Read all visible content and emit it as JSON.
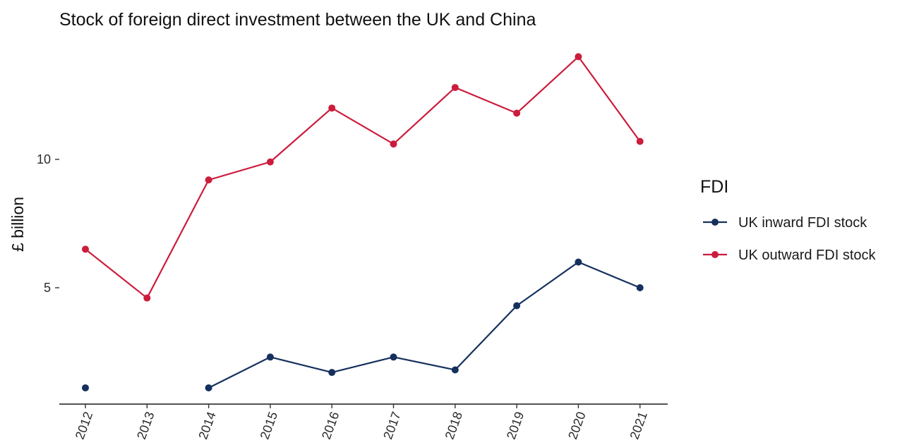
{
  "chart_data": {
    "type": "line",
    "title": "Stock of foreign direct investment between the UK and China",
    "xlabel": "",
    "ylabel": "£ billion",
    "x": [
      "2012",
      "2013",
      "2014",
      "2015",
      "2016",
      "2017",
      "2018",
      "2019",
      "2020",
      "2021"
    ],
    "ylim": [
      0.9,
      14.3
    ],
    "yticks": [
      5,
      10
    ],
    "grid": false,
    "legend": {
      "title": "FDI",
      "position": "right"
    },
    "series": [
      {
        "name": "UK inward FDI stock",
        "color": "#15305e",
        "values": [
          1.1,
          null,
          1.1,
          2.3,
          1.7,
          2.3,
          1.8,
          4.3,
          6.0,
          5.0
        ]
      },
      {
        "name": "UK outward FDI stock",
        "color": "#cc1c3c",
        "values": [
          6.5,
          4.6,
          9.2,
          9.9,
          12.0,
          10.6,
          12.8,
          11.8,
          14.0,
          10.7
        ]
      }
    ]
  }
}
